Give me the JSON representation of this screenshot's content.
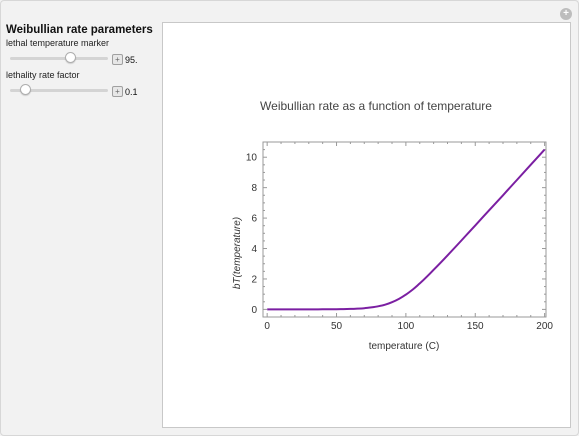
{
  "controls": {
    "title": "Weibullian rate parameters",
    "reset_icon": "plus-circle-icon",
    "sliders": [
      {
        "label": "lethal temperature marker",
        "value_text": "95.",
        "value": 95,
        "fraction": 0.62
      },
      {
        "label": "lethality rate factor",
        "value_text": "0.1",
        "value": 0.1,
        "fraction": 0.16
      }
    ]
  },
  "plot": {
    "line_color": "#7b1fa2",
    "chart_data": {
      "type": "line",
      "title": "Weibullian rate as a function of temperature",
      "xlabel": "temperature (C)",
      "ylabel": "bT(temperature)",
      "xlim": [
        -3,
        201
      ],
      "ylim": [
        -0.5,
        11
      ],
      "xticks": [
        0,
        50,
        100,
        150,
        200
      ],
      "yticks": [
        0,
        2,
        4,
        6,
        8,
        10
      ],
      "lethal_temperature": 95,
      "rate_factor": 0.1,
      "series": [
        {
          "x": [
            0,
            10,
            20,
            30,
            40,
            50,
            55,
            60,
            65,
            70,
            75,
            80,
            85,
            90,
            95,
            100,
            105,
            110,
            115,
            120,
            130,
            140,
            150,
            160,
            170,
            180,
            190,
            200
          ],
          "values": [
            0.0,
            0.0,
            0.0,
            0.0,
            0.01,
            0.01,
            0.02,
            0.03,
            0.05,
            0.08,
            0.13,
            0.2,
            0.31,
            0.47,
            0.69,
            0.97,
            1.31,
            1.71,
            2.14,
            2.6,
            3.55,
            4.53,
            5.52,
            6.51,
            7.5,
            8.5,
            9.5,
            10.5
          ]
        }
      ]
    }
  }
}
